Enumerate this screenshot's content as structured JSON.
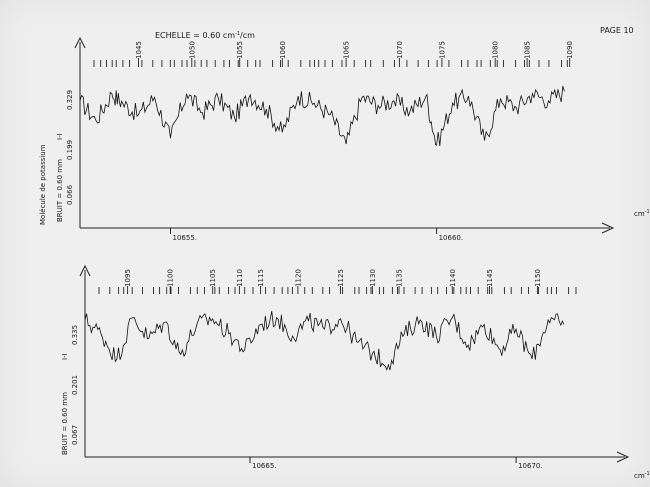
{
  "page": {
    "page_label": "PAGE 10",
    "scale_label": "ECHELLE = 0.60 cm",
    "scale_superscript": "-1",
    "scale_suffix": "/cm",
    "molecule_label": "Molécule de potassium",
    "axis_unit_label": "cm",
    "axis_unit_superscript": "-1"
  },
  "chart_data": [
    {
      "type": "line",
      "title": "",
      "xlabel": "cm-1",
      "ylabel": "I-I",
      "noise_label": "BRUIT = 0.60 mm",
      "y_tick_labels": [
        "0.329",
        "0.199",
        "0.066"
      ],
      "x_tick_labels": [
        "10655.",
        "10660."
      ],
      "x_tick_values": [
        10655,
        10660
      ],
      "xlim": [
        10653.3,
        10662.6
      ],
      "ylim": [
        0,
        1
      ],
      "line_numbers": [
        "1045",
        "1050",
        "1055",
        "1060",
        "1065",
        "1070",
        "1075",
        "1080",
        "1085",
        "1090"
      ],
      "line_number_positions": [
        10654.4,
        10655.4,
        10656.3,
        10657.1,
        10658.3,
        10659.3,
        10660.1,
        10661.1,
        10661.7,
        10662.5
      ],
      "series": [
        {
          "x": [
            10653.3,
            10653.6,
            10653.9,
            10654.1,
            10654.4,
            10654.7,
            10655.0,
            10655.3,
            10655.6,
            10655.9,
            10656.2,
            10656.5,
            10656.8,
            10657.1,
            10657.4,
            10657.7,
            10658.0,
            10658.3,
            10658.6,
            10658.9,
            10659.2,
            10659.5,
            10659.8,
            10660.0,
            10660.3,
            10660.6,
            10660.9,
            10661.2,
            10661.5,
            10661.8,
            10662.1,
            10662.4
          ],
          "values": [
            0.72,
            0.55,
            0.78,
            0.7,
            0.6,
            0.75,
            0.4,
            0.78,
            0.62,
            0.74,
            0.58,
            0.77,
            0.65,
            0.45,
            0.76,
            0.7,
            0.6,
            0.35,
            0.75,
            0.68,
            0.72,
            0.63,
            0.76,
            0.34,
            0.7,
            0.76,
            0.38,
            0.74,
            0.66,
            0.78,
            0.72,
            0.8
          ]
        }
      ]
    },
    {
      "type": "line",
      "title": "",
      "xlabel": "cm-1",
      "ylabel": "I-I",
      "noise_label": "BRUIT = 0.60 mm",
      "y_tick_labels": [
        "0.335",
        "0.201",
        "0.067"
      ],
      "x_tick_labels": [
        "10665.",
        "10670."
      ],
      "x_tick_values": [
        10665,
        10670
      ],
      "xlim": [
        10661.9,
        10671.2
      ],
      "ylim": [
        0,
        1
      ],
      "line_numbers": [
        "1095",
        "1100",
        "1105",
        "1110",
        "1115",
        "1120",
        "1125",
        "1130",
        "1135",
        "1140",
        "1145",
        "1150"
      ],
      "line_number_positions": [
        10662.7,
        10663.5,
        10664.3,
        10664.8,
        10665.2,
        10665.9,
        10666.7,
        10667.3,
        10667.8,
        10668.8,
        10669.5,
        10670.4
      ],
      "series": [
        {
          "x": [
            10661.9,
            10662.2,
            10662.5,
            10662.8,
            10663.1,
            10663.4,
            10663.7,
            10664.0,
            10664.3,
            10664.6,
            10664.9,
            10665.2,
            10665.5,
            10665.8,
            10666.1,
            10666.4,
            10666.7,
            10667.0,
            10667.3,
            10667.6,
            10667.9,
            10668.2,
            10668.5,
            10668.8,
            10669.1,
            10669.4,
            10669.7,
            10670.0,
            10670.3,
            10670.6,
            10670.9
          ],
          "values": [
            0.74,
            0.62,
            0.4,
            0.76,
            0.58,
            0.72,
            0.44,
            0.7,
            0.75,
            0.62,
            0.48,
            0.7,
            0.76,
            0.6,
            0.73,
            0.66,
            0.75,
            0.55,
            0.45,
            0.35,
            0.62,
            0.74,
            0.6,
            0.76,
            0.52,
            0.7,
            0.48,
            0.66,
            0.4,
            0.74,
            0.7
          ]
        }
      ]
    }
  ]
}
